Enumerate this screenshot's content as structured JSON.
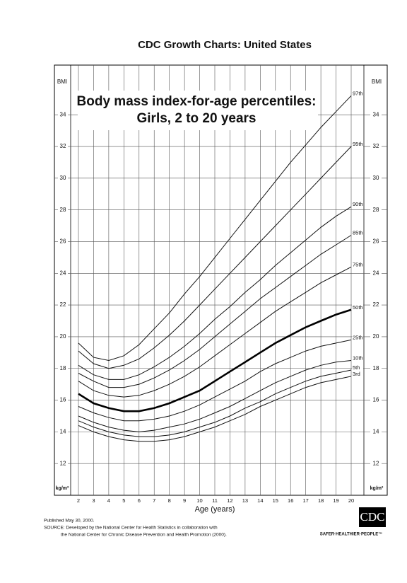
{
  "chart_data": {
    "type": "line",
    "title": "CDC Growth Charts: United States",
    "subtitle": [
      "Body mass index-for-age percentiles:",
      "Girls, 2 to 20 years"
    ],
    "x_label": "Age (years)",
    "y_label": "BMI",
    "y_unit": "kg/m²",
    "x": [
      2,
      3,
      4,
      5,
      6,
      7,
      8,
      9,
      10,
      11,
      12,
      13,
      14,
      15,
      16,
      17,
      18,
      19,
      20
    ],
    "xlim": [
      2,
      20
    ],
    "xticks": [
      2,
      3,
      4,
      5,
      6,
      7,
      8,
      9,
      10,
      11,
      12,
      13,
      14,
      15,
      16,
      17,
      18,
      19,
      20
    ],
    "ylim": [
      10,
      37
    ],
    "yticks": [
      12,
      14,
      16,
      18,
      20,
      22,
      24,
      26,
      28,
      30,
      32,
      34
    ],
    "grid": true,
    "series": [
      {
        "name": "97th",
        "color": "#111111",
        "width": 1,
        "values": [
          19.6,
          18.7,
          18.5,
          18.8,
          19.5,
          20.5,
          21.5,
          22.7,
          23.8,
          25.0,
          26.2,
          27.4,
          28.6,
          29.8,
          31.0,
          32.1,
          33.2,
          34.2,
          35.2
        ]
      },
      {
        "name": "95th",
        "color": "#111111",
        "width": 1,
        "values": [
          19.1,
          18.3,
          18.0,
          18.2,
          18.6,
          19.3,
          20.1,
          21.0,
          22.0,
          23.0,
          24.0,
          25.0,
          26.0,
          27.0,
          28.0,
          29.0,
          30.0,
          31.0,
          32.0
        ]
      },
      {
        "name": "90th",
        "color": "#111111",
        "width": 1,
        "values": [
          18.2,
          17.6,
          17.3,
          17.3,
          17.6,
          18.1,
          18.7,
          19.4,
          20.2,
          21.1,
          21.9,
          22.8,
          23.6,
          24.5,
          25.3,
          26.1,
          26.9,
          27.6,
          28.2
        ]
      },
      {
        "name": "85th",
        "color": "#111111",
        "width": 1,
        "values": [
          17.7,
          17.2,
          16.8,
          16.8,
          17.0,
          17.4,
          17.9,
          18.5,
          19.2,
          20.0,
          20.8,
          21.6,
          22.4,
          23.1,
          23.8,
          24.5,
          25.2,
          25.8,
          26.4
        ]
      },
      {
        "name": "75th",
        "color": "#111111",
        "width": 1,
        "values": [
          17.2,
          16.6,
          16.3,
          16.2,
          16.3,
          16.6,
          17.0,
          17.5,
          18.1,
          18.8,
          19.5,
          20.2,
          20.9,
          21.6,
          22.2,
          22.8,
          23.4,
          23.9,
          24.4
        ]
      },
      {
        "name": "50th",
        "color": "#000000",
        "width": 2.6,
        "values": [
          16.4,
          15.8,
          15.5,
          15.3,
          15.3,
          15.5,
          15.8,
          16.2,
          16.6,
          17.2,
          17.8,
          18.4,
          19.0,
          19.6,
          20.1,
          20.6,
          21.0,
          21.4,
          21.7
        ]
      },
      {
        "name": "25th",
        "color": "#111111",
        "width": 1,
        "values": [
          15.6,
          15.2,
          14.9,
          14.7,
          14.7,
          14.8,
          15.0,
          15.3,
          15.7,
          16.2,
          16.7,
          17.2,
          17.8,
          18.3,
          18.7,
          19.1,
          19.4,
          19.6,
          19.8
        ]
      },
      {
        "name": "10th",
        "color": "#111111",
        "width": 1,
        "values": [
          15.0,
          14.6,
          14.3,
          14.1,
          14.0,
          14.1,
          14.3,
          14.5,
          14.8,
          15.2,
          15.6,
          16.1,
          16.6,
          17.1,
          17.5,
          17.9,
          18.2,
          18.4,
          18.5
        ]
      },
      {
        "name": "5th",
        "color": "#111111",
        "width": 1,
        "values": [
          14.7,
          14.3,
          14.0,
          13.8,
          13.7,
          13.7,
          13.8,
          14.0,
          14.3,
          14.6,
          15.0,
          15.5,
          15.9,
          16.4,
          16.8,
          17.2,
          17.5,
          17.7,
          17.9
        ]
      },
      {
        "name": "3rd",
        "color": "#111111",
        "width": 1,
        "values": [
          14.4,
          14.0,
          13.7,
          13.5,
          13.4,
          13.4,
          13.5,
          13.7,
          14.0,
          14.3,
          14.7,
          15.1,
          15.6,
          16.0,
          16.4,
          16.8,
          17.1,
          17.3,
          17.5
        ]
      }
    ]
  },
  "footer": {
    "published": "Published May 30, 2000.",
    "source": [
      "SOURCE: Developed by the National Center for Health Statistics in collaboration with",
      "the National Center for Chronic Disease Prevention and Health Promotion (2000)."
    ],
    "logo": "CDC",
    "tagline": "SAFER·HEALTHIER·PEOPLE™"
  }
}
